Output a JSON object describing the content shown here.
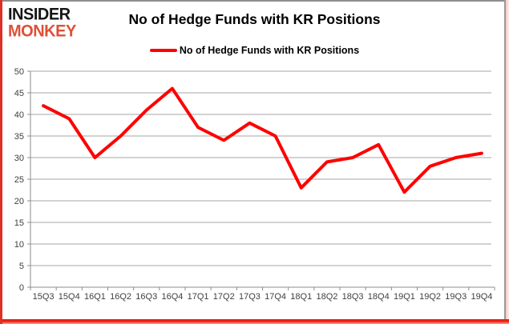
{
  "logo": {
    "line1": "INSIDER",
    "line2": "MONKEY"
  },
  "header": {
    "title": "No of Hedge Funds with KR Positions"
  },
  "legend": {
    "label": "No of Hedge Funds with KR Positions"
  },
  "colors": {
    "line": "#FF0000",
    "grid": "#A6A6A6",
    "axis": "#8C8C8C",
    "tick_label": "#3F3F3F",
    "logo_black": "#161616",
    "logo_red": "#DD5138",
    "border_red": "#E02314",
    "border_gray": "#8F8F8F"
  },
  "chart_data": {
    "type": "line",
    "title": "No of Hedge Funds with KR Positions",
    "categories": [
      "15Q3",
      "15Q4",
      "16Q1",
      "16Q2",
      "16Q3",
      "16Q4",
      "17Q1",
      "17Q2",
      "17Q3",
      "17Q4",
      "18Q1",
      "18Q2",
      "18Q3",
      "18Q4",
      "19Q1",
      "19Q2",
      "19Q3",
      "19Q4"
    ],
    "series": [
      {
        "name": "No of Hedge Funds with KR Positions",
        "values": [
          42,
          39,
          30,
          35,
          41,
          46,
          37,
          34,
          38,
          35,
          23,
          29,
          30,
          33,
          22,
          28,
          30,
          31
        ]
      }
    ],
    "ylim": [
      0,
      50
    ],
    "yticks": [
      0,
      5,
      10,
      15,
      20,
      25,
      30,
      35,
      40,
      45,
      50
    ],
    "xlabel": "",
    "ylabel": "",
    "grid": "horizontal",
    "legend_position": "top"
  }
}
